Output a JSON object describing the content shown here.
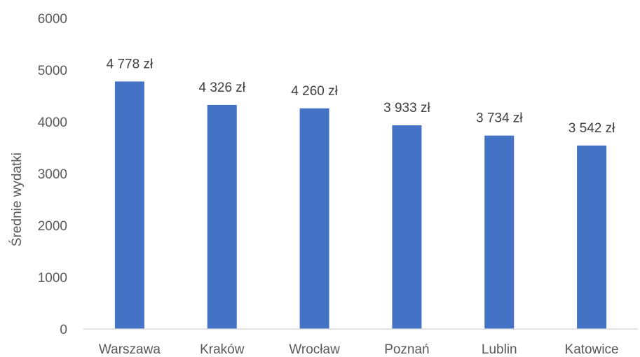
{
  "chart_data": {
    "type": "bar",
    "title": "",
    "xlabel": "",
    "ylabel": "Średnie wydatki",
    "ylim": [
      0,
      6000
    ],
    "yticks": [
      0,
      1000,
      2000,
      3000,
      4000,
      5000,
      6000
    ],
    "grid": false,
    "legend": "none",
    "categories": [
      "Warszawa",
      "Kraków",
      "Wrocław",
      "Poznań",
      "Lublin",
      "Katowice"
    ],
    "values": [
      4778,
      4326,
      4260,
      3933,
      3734,
      3542
    ],
    "data_labels": [
      "4 778 zł",
      "4 326 zł",
      "4 260 zł",
      "3 933 zł",
      "3 734 zł",
      "3 542 zł"
    ],
    "bar_color": "#4472C4",
    "axis_color": "#D9D9D9"
  }
}
